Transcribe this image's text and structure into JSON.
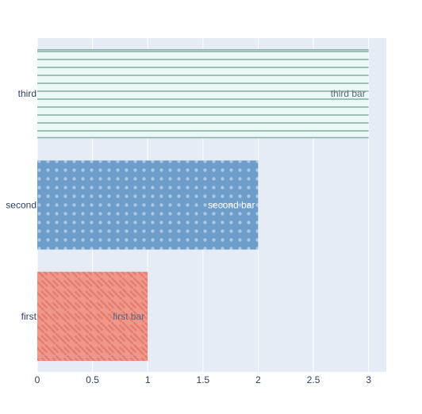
{
  "chart_data": {
    "type": "bar",
    "orientation": "horizontal",
    "categories": [
      "first",
      "second",
      "third"
    ],
    "values": [
      1,
      2,
      3
    ],
    "text": [
      "first bar",
      "second bar",
      "third bar"
    ],
    "xlim": [
      0,
      3.16
    ],
    "x_ticks": [
      "0",
      "0.5",
      "1",
      "1.5",
      "2",
      "2.5",
      "3"
    ],
    "grid": true,
    "colors": {
      "plot_background": "#E5ECF6",
      "grid": "#ffffff",
      "tick_text": "#2a3f5f",
      "bars": [
        {
          "fill": "#F0968A",
          "pattern": "diagonal-lines",
          "pattern_color": "#E37F72",
          "text_color": "#5d6b80"
        },
        {
          "fill": "#6F9DC9",
          "pattern": "dots",
          "pattern_color": "#A7C7E6",
          "text_color": "#ffffff"
        },
        {
          "fill": "#EAF8F6",
          "pattern": "horizontal-lines",
          "pattern_color": "#8FAFAA",
          "text_color": "#5d6b80"
        }
      ]
    }
  }
}
